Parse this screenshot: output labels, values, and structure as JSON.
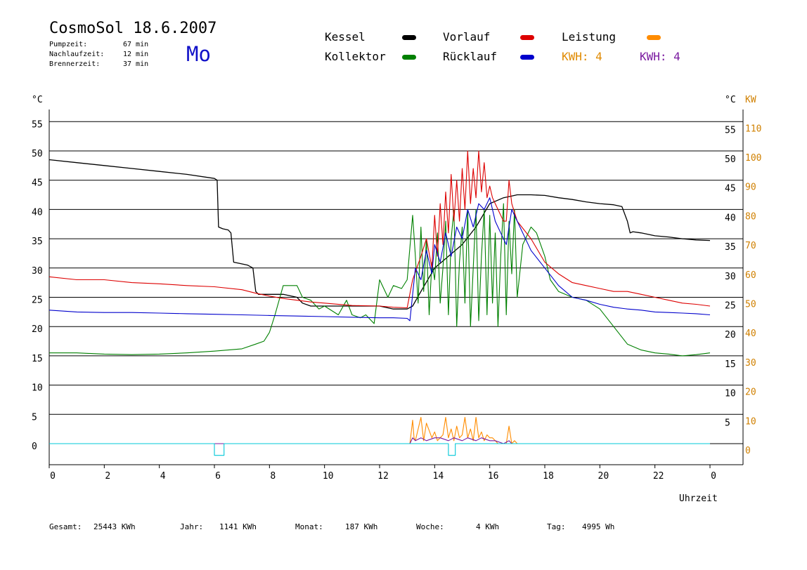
{
  "header": {
    "title": "CosmoSol 18.6.2007",
    "weekday": "Mo",
    "stats": [
      {
        "label": "Pumpzeit:",
        "value": "67 min"
      },
      {
        "label": "Nachlaufzeit:",
        "value": "12 min"
      },
      {
        "label": "Brennerzeit:",
        "value": "37 min"
      }
    ]
  },
  "legend": {
    "kessel": {
      "label": "Kessel",
      "color": "#000000"
    },
    "kollektor": {
      "label": "Kollektor",
      "color": "#008000"
    },
    "vorlauf": {
      "label": "Vorlauf",
      "color": "#dd0000"
    },
    "ruecklauf": {
      "label": "Rücklauf",
      "color": "#0000cc"
    },
    "leistung": {
      "label": "Leistung",
      "color": "#ff8c00"
    },
    "kwh1": {
      "label": "KWH: 4",
      "color": "#e08a00"
    },
    "kwh2": {
      "label": "KWH: 4",
      "color": "#7a1aa0"
    }
  },
  "footer": [
    {
      "label": "Gesamt:",
      "value": "25443 KWh"
    },
    {
      "label": "Jahr:",
      "value": "1141 KWh"
    },
    {
      "label": "Monat:",
      "value": "187 KWh"
    },
    {
      "label": "Woche:",
      "value": "4 KWh"
    },
    {
      "label": "Tag:",
      "value": "4995 Wh"
    }
  ],
  "chart_data": {
    "type": "line",
    "xlabel": "Uhrzeit",
    "x_ticks": [
      "0",
      "2",
      "4",
      "6",
      "8",
      "10",
      "12",
      "14",
      "16",
      "18",
      "20",
      "22",
      "0"
    ],
    "xlim": [
      0,
      24
    ],
    "ylabel_left": "°C",
    "ylabel_right_temp": "°C",
    "ylabel_right_power": "KW",
    "ylim": [
      -4,
      57
    ],
    "y_ticks": [
      0,
      5,
      10,
      15,
      20,
      25,
      30,
      35,
      40,
      45,
      50,
      55
    ],
    "y2_ticks": [
      0,
      10,
      20,
      30,
      40,
      50,
      60,
      70,
      80,
      90,
      100,
      110
    ],
    "grid": "horizontal",
    "series": [
      {
        "name": "Kessel",
        "color": "#000000",
        "x": [
          0,
          1,
          2,
          3,
          4,
          5,
          6,
          6.1,
          6.15,
          6.3,
          6.5,
          6.6,
          6.7,
          6.9,
          7.2,
          7.4,
          7.5,
          7.6,
          8,
          8.5,
          9,
          9.2,
          9.5,
          10,
          11,
          12,
          12.5,
          13,
          13.2,
          13.5,
          14,
          14.5,
          15,
          15.5,
          16,
          16.5,
          16.8,
          17,
          17.5,
          18,
          18.5,
          19,
          19.5,
          20,
          20.5,
          20.8,
          21,
          21.1,
          21.2,
          21.5,
          22,
          22.5,
          23,
          23.5,
          24
        ],
        "y": [
          48.5,
          48,
          47.5,
          47,
          46.5,
          46,
          45.3,
          45,
          37,
          36.7,
          36.5,
          36,
          31,
          30.8,
          30.5,
          30,
          26,
          25.5,
          25.5,
          25.5,
          25,
          24,
          23.5,
          23.5,
          23.5,
          23.5,
          23,
          23,
          23.5,
          26,
          30,
          32,
          34,
          37,
          41,
          42,
          42.3,
          42.5,
          42.5,
          42.4,
          42,
          41.7,
          41.3,
          41,
          40.8,
          40.5,
          38,
          36,
          36.2,
          36,
          35.5,
          35.3,
          35,
          34.8,
          34.7
        ]
      },
      {
        "name": "Kollektor",
        "color": "#008000",
        "x": [
          0,
          1,
          2,
          3,
          4,
          5,
          6,
          7,
          7.5,
          7.8,
          8,
          8.2,
          8.5,
          9,
          9.2,
          9.5,
          9.8,
          10,
          10.5,
          10.8,
          11,
          11.3,
          11.5,
          11.8,
          12,
          12.3,
          12.5,
          12.8,
          13,
          13.2,
          13.3,
          13.4,
          13.5,
          13.6,
          13.7,
          13.8,
          13.9,
          14,
          14.1,
          14.2,
          14.3,
          14.4,
          14.5,
          14.6,
          14.7,
          14.8,
          14.9,
          15,
          15.1,
          15.2,
          15.3,
          15.4,
          15.5,
          15.6,
          15.7,
          15.8,
          15.9,
          16,
          16.1,
          16.2,
          16.3,
          16.4,
          16.5,
          16.6,
          16.7,
          16.8,
          16.9,
          17,
          17.2,
          17.5,
          17.7,
          18,
          18.2,
          18.5,
          19,
          19.5,
          20,
          20.5,
          21,
          21.5,
          22,
          22.5,
          23,
          23.5,
          24
        ],
        "y": [
          15.5,
          15.5,
          15.3,
          15.2,
          15.3,
          15.5,
          15.8,
          16.2,
          17,
          17.5,
          19,
          22,
          27,
          27,
          25,
          24.5,
          23,
          23.5,
          22,
          24.5,
          22,
          21.5,
          22,
          20.5,
          28,
          25,
          27,
          26.5,
          28,
          39,
          32,
          24,
          37,
          26,
          35,
          22,
          31,
          28,
          36,
          24,
          30,
          38,
          22,
          35,
          40,
          20,
          31,
          37,
          24,
          40,
          20,
          30,
          40,
          21,
          32,
          40,
          22,
          39,
          24,
          36,
          20,
          32,
          41,
          22,
          38,
          29,
          40,
          25,
          34,
          37,
          36,
          32,
          28,
          26,
          25,
          24.5,
          23,
          20,
          17,
          16,
          15.5,
          15.3,
          15,
          15.2,
          15.5
        ]
      },
      {
        "name": "Vorlauf",
        "color": "#dd0000",
        "x": [
          0,
          1,
          2,
          3,
          4,
          5,
          6,
          7,
          7.5,
          8,
          8.5,
          9,
          9.5,
          10,
          11,
          12,
          12.5,
          13,
          13.2,
          13.5,
          13.7,
          13.9,
          14,
          14.1,
          14.2,
          14.3,
          14.4,
          14.5,
          14.6,
          14.7,
          14.8,
          14.9,
          15,
          15.1,
          15.2,
          15.3,
          15.4,
          15.5,
          15.6,
          15.7,
          15.8,
          15.9,
          16,
          16.1,
          16.2,
          16.3,
          16.4,
          16.5,
          16.6,
          16.7,
          16.8,
          17,
          17.5,
          18,
          18.5,
          19,
          19.5,
          20,
          20.5,
          21,
          21.5,
          22,
          22.5,
          23,
          23.5,
          24
        ],
        "y": [
          28.5,
          28,
          28,
          27.5,
          27.3,
          27,
          26.8,
          26.3,
          25.7,
          25.2,
          24.8,
          24.5,
          24.2,
          24,
          23.6,
          23.5,
          23.3,
          23.2,
          28,
          32,
          35,
          30,
          39,
          32,
          41,
          34,
          43,
          36,
          46,
          38,
          45,
          38,
          47,
          40,
          50,
          41,
          47,
          42,
          50,
          43,
          48,
          42,
          44,
          42,
          41,
          40,
          39,
          38,
          38,
          45,
          41,
          38,
          35,
          31,
          29,
          27.5,
          27,
          26.5,
          26,
          26,
          25.5,
          25,
          24.5,
          24,
          23.8,
          23.5
        ]
      },
      {
        "name": "Rücklauf",
        "color": "#0000cc",
        "x": [
          0,
          1,
          2,
          3,
          4,
          5,
          6,
          7,
          8,
          9,
          10,
          11,
          12,
          12.5,
          13,
          13.1,
          13.3,
          13.5,
          13.7,
          13.9,
          14,
          14.2,
          14.4,
          14.6,
          14.8,
          15,
          15.2,
          15.4,
          15.6,
          15.8,
          16,
          16.2,
          16.4,
          16.6,
          16.8,
          17,
          17.5,
          18,
          18.5,
          19,
          19.5,
          20,
          20.5,
          21,
          21.5,
          22,
          22.5,
          23,
          23.5,
          24
        ],
        "y": [
          22.8,
          22.5,
          22.4,
          22.4,
          22.3,
          22.2,
          22.1,
          22,
          21.9,
          21.8,
          21.7,
          21.6,
          21.5,
          21.5,
          21.4,
          21,
          30,
          28,
          33,
          29,
          34,
          31,
          36,
          32,
          37,
          35,
          40,
          37,
          41,
          40,
          42,
          38,
          36,
          34,
          40,
          38,
          33,
          30,
          27,
          25,
          24.5,
          23.8,
          23.3,
          23,
          22.8,
          22.5,
          22.4,
          22.3,
          22.2,
          22
        ]
      },
      {
        "name": "Leistung",
        "color": "#ff8c00",
        "axis": "KW",
        "x": [
          0,
          13.1,
          13.2,
          13.25,
          13.3,
          13.5,
          13.6,
          13.7,
          13.9,
          14,
          14.1,
          14.3,
          14.4,
          14.5,
          14.6,
          14.7,
          14.8,
          14.9,
          15,
          15.1,
          15.2,
          15.3,
          15.4,
          15.5,
          15.6,
          15.7,
          15.8,
          15.9,
          16,
          16.1,
          16.2,
          16.3,
          16.5,
          16.6,
          16.7,
          16.8,
          16.9,
          17,
          24
        ],
        "y": [
          0,
          0,
          8,
          2,
          1,
          9,
          1,
          7,
          2,
          4,
          1,
          3,
          9,
          2,
          5,
          1,
          6,
          2,
          3,
          9,
          2,
          5,
          1,
          9,
          2,
          4,
          1,
          3,
          2,
          2,
          1,
          0,
          0,
          0,
          6,
          0,
          1,
          0,
          0
        ]
      },
      {
        "name": "KWH",
        "color": "#7a1aa0",
        "axis": "KW",
        "x": [
          0,
          13.1,
          13.2,
          13.3,
          13.5,
          13.7,
          14,
          14.2,
          14.5,
          14.7,
          15,
          15.2,
          15.5,
          15.7,
          16,
          16.2,
          16.5,
          16.7,
          16.8,
          17,
          24
        ],
        "y": [
          0,
          0,
          2,
          1,
          2,
          1,
          2,
          2,
          1,
          2,
          1,
          2,
          1,
          2,
          1,
          1,
          0,
          1,
          0,
          0,
          0
        ]
      },
      {
        "name": "Pumpe",
        "color": "#00c8d8",
        "x": [
          0,
          6.0,
          6.0,
          6.35,
          6.35,
          14.5,
          14.5,
          14.75,
          14.75,
          24
        ],
        "y": [
          0,
          0,
          -2,
          -2,
          0,
          0,
          -2,
          -2,
          0,
          0
        ]
      }
    ]
  }
}
